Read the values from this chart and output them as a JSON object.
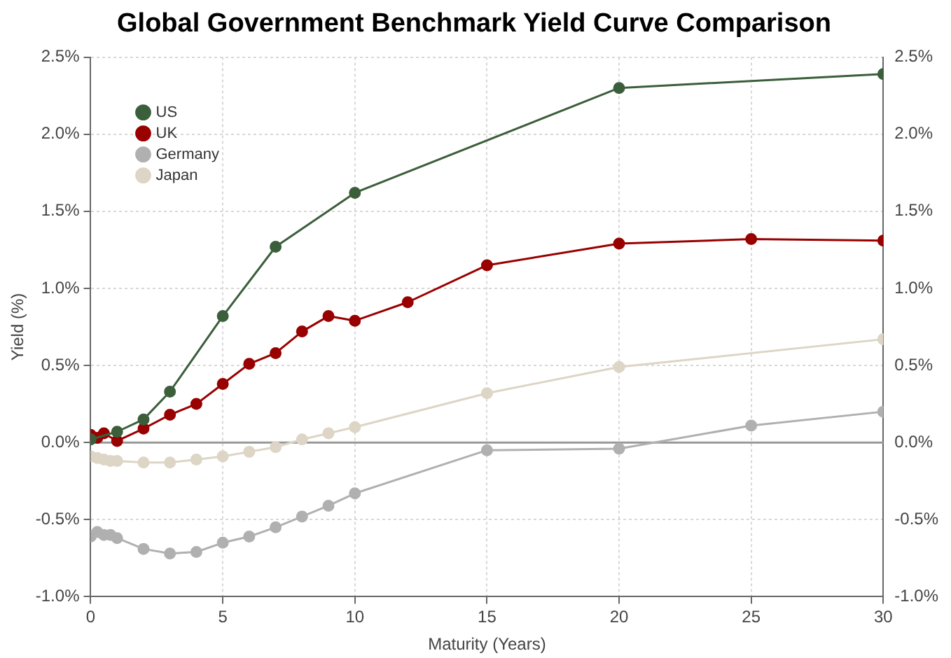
{
  "chart_data": {
    "type": "line",
    "title": "Global Government Benchmark Yield Curve Comparison",
    "xlabel": "Maturity (Years)",
    "ylabel": "Yield (%)",
    "series": [
      {
        "name": "US",
        "color": "#3b5e3b",
        "x": [
          0,
          1,
          2,
          3,
          5,
          7,
          10,
          20,
          30
        ],
        "values": [
          0.02,
          0.07,
          0.15,
          0.33,
          0.82,
          1.27,
          1.62,
          2.3,
          2.39
        ]
      },
      {
        "name": "UK",
        "color": "#990000",
        "x": [
          0,
          0.25,
          0.5,
          1,
          2,
          3,
          4,
          5,
          6,
          7,
          8,
          9,
          10,
          12,
          15,
          20,
          25,
          30
        ],
        "values": [
          0.05,
          0.03,
          0.06,
          0.01,
          0.09,
          0.18,
          0.25,
          0.38,
          0.51,
          0.58,
          0.72,
          0.82,
          0.79,
          0.91,
          1.15,
          1.29,
          1.32,
          1.31
        ]
      },
      {
        "name": "Germany",
        "color": "#b0b0b0",
        "x": [
          0,
          0.25,
          0.5,
          0.75,
          1,
          2,
          3,
          4,
          5,
          6,
          7,
          8,
          9,
          10,
          15,
          20,
          25,
          30
        ],
        "values": [
          -0.61,
          -0.58,
          -0.6,
          -0.6,
          -0.62,
          -0.69,
          -0.72,
          -0.71,
          -0.65,
          -0.61,
          -0.55,
          -0.48,
          -0.41,
          -0.33,
          -0.05,
          -0.04,
          0.11,
          0.2
        ]
      },
      {
        "name": "Japan",
        "color": "#ddd5c5",
        "x": [
          0,
          0.25,
          0.5,
          0.75,
          1,
          2,
          3,
          4,
          5,
          6,
          7,
          8,
          9,
          10,
          15,
          20,
          30
        ],
        "values": [
          -0.09,
          -0.1,
          -0.11,
          -0.12,
          -0.12,
          -0.13,
          -0.13,
          -0.11,
          -0.09,
          -0.06,
          -0.03,
          0.02,
          0.06,
          0.1,
          0.32,
          0.49,
          0.67
        ]
      }
    ],
    "xlim": [
      0,
      30
    ],
    "xticks": [
      0,
      5,
      10,
      15,
      20,
      25,
      30
    ],
    "ylim": [
      -1,
      2.5
    ],
    "yticks": [
      {
        "value": -1,
        "label": "-1.0%"
      },
      {
        "value": -0.5,
        "label": "-0.5%"
      },
      {
        "value": 0,
        "label": "0.0%"
      },
      {
        "value": 0.5,
        "label": "0.5%"
      },
      {
        "value": 1,
        "label": "1.0%"
      },
      {
        "value": 1.5,
        "label": "1.5%"
      },
      {
        "value": 2,
        "label": "2.0%"
      },
      {
        "value": 2.5,
        "label": "2.5%"
      }
    ],
    "y2lim": [
      -1,
      2.5
    ],
    "y2ticks": [
      {
        "value": -1,
        "label": "-1.0%"
      },
      {
        "value": -0.5,
        "label": "-0.5%"
      },
      {
        "value": 0,
        "label": "0.0%"
      },
      {
        "value": 0.5,
        "label": "0.5%"
      },
      {
        "value": 1,
        "label": "1.0%"
      },
      {
        "value": 1.5,
        "label": "1.5%"
      },
      {
        "value": 2,
        "label": "2.0%"
      },
      {
        "value": 2.5,
        "label": "2.5%"
      }
    ],
    "ref_lines": [
      {
        "axis": "y",
        "value": 0,
        "color": "#999999"
      }
    ],
    "grid": true,
    "legend": "top left",
    "marker": "circle",
    "line_style": "solid"
  }
}
